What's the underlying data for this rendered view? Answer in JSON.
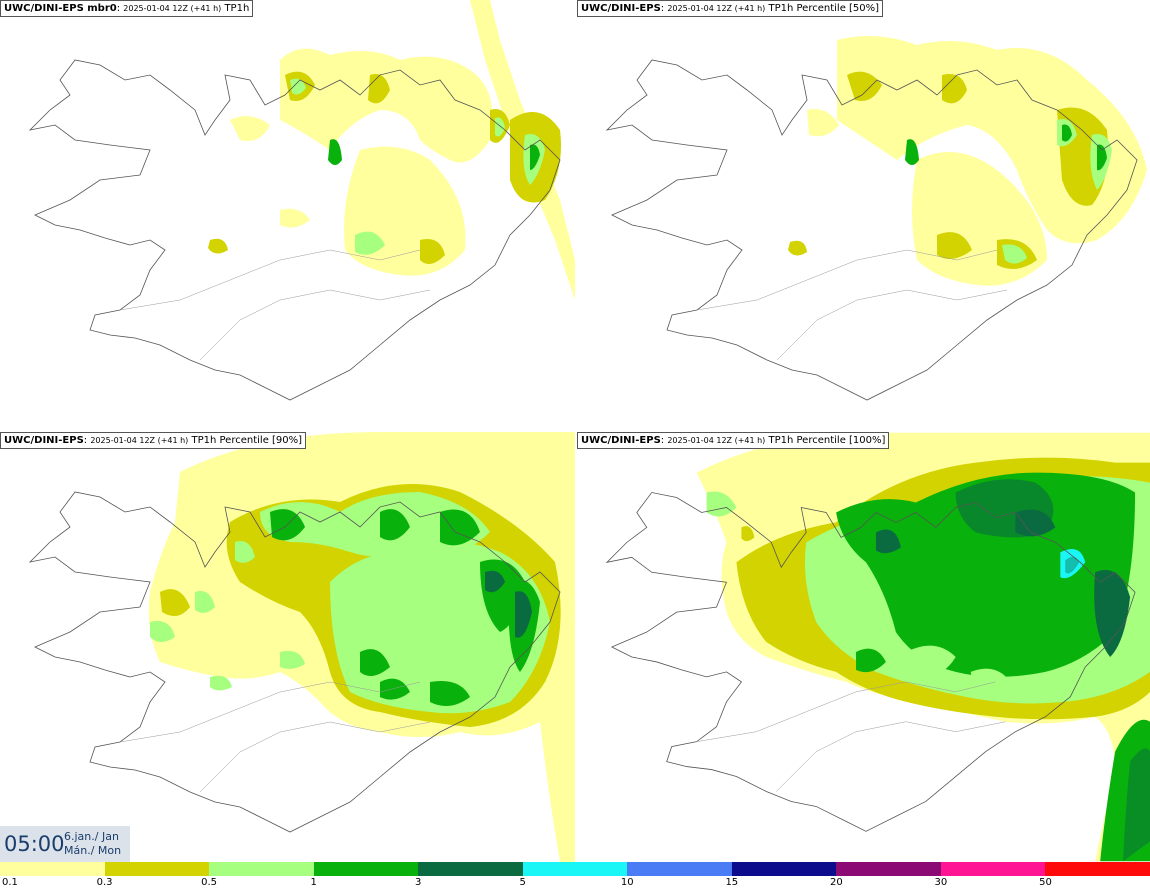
{
  "panels": [
    {
      "model": "UWC/DINI-EPS mbr0",
      "sep": ": ",
      "run": "2025-01-04 12Z (+41 h)",
      "field": " TP1h"
    },
    {
      "model": "UWC/DINI-EPS",
      "sep": ": ",
      "run": "2025-01-04 12Z (+41 h)",
      "field": " TP1h Percentile [50%]"
    },
    {
      "model": "UWC/DINI-EPS",
      "sep": ": ",
      "run": "2025-01-04 12Z (+41 h)",
      "field": " TP1h Percentile [90%]"
    },
    {
      "model": "UWC/DINI-EPS",
      "sep": ": ",
      "run": "2025-01-04 12Z (+41 h)",
      "field": " TP1h Percentile [100%]"
    }
  ],
  "clock": {
    "time": "05:00",
    "date_line1": "6.jan./ Jan",
    "date_line2": "Mán./ Mon"
  },
  "colorbar": {
    "colors": [
      "#ffff9e",
      "#d2d300",
      "#a6ff7e",
      "#08b10b",
      "#0a6b41",
      "#1af5f5",
      "#4a7cf5",
      "#0c0c8c",
      "#8c0a74",
      "#ff1493",
      "#ff0a0a"
    ],
    "labels": [
      "0.1",
      "0.3",
      "0.5",
      "1",
      "3",
      "5",
      "10",
      "15",
      "20",
      "30",
      "50"
    ]
  },
  "palette": {
    "light_yellow": "#ffff9e",
    "olive": "#d2d300",
    "light_green": "#a6ff7e",
    "green": "#08b10b",
    "dark_green": "#0a6b41",
    "cyan": "#1af5f5"
  }
}
